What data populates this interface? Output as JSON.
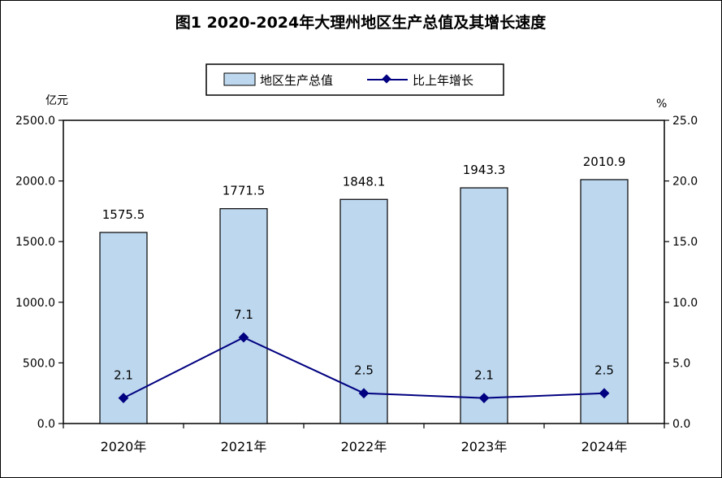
{
  "chart_data": {
    "type": "bar",
    "title": "图1  2020-2024年大理州地区生产总值及其增长速度",
    "categories": [
      "2020年",
      "2021年",
      "2022年",
      "2023年",
      "2024年"
    ],
    "series": [
      {
        "name": "地区生产总值",
        "type": "bar",
        "axis": "left",
        "values": [
          1575.5,
          1771.5,
          1848.1,
          1943.3,
          2010.9
        ],
        "labels": [
          "1575.5",
          "1771.5",
          "1848.1",
          "1943.3",
          "2010.9"
        ]
      },
      {
        "name": "比上年增长",
        "type": "line",
        "axis": "right",
        "values": [
          2.1,
          7.1,
          2.5,
          2.1,
          2.5
        ],
        "labels": [
          "2.1",
          "7.1",
          "2.5",
          "2.1",
          "2.5"
        ]
      }
    ],
    "y_left": {
      "unit": "亿元",
      "range": [
        0,
        2500
      ],
      "ticks": [
        "0.0",
        "500.0",
        "1000.0",
        "1500.0",
        "2000.0",
        "2500.0"
      ]
    },
    "y_right": {
      "unit": "%",
      "range": [
        0,
        25
      ],
      "ticks": [
        "0.0",
        "5.0",
        "10.0",
        "15.0",
        "20.0",
        "25.0"
      ]
    },
    "legend_position": "top-center",
    "grid": false,
    "colors": {
      "bar_fill": "#bdd7ee",
      "bar_stroke": "#000000",
      "line": "#000080",
      "marker": "#000080"
    }
  }
}
